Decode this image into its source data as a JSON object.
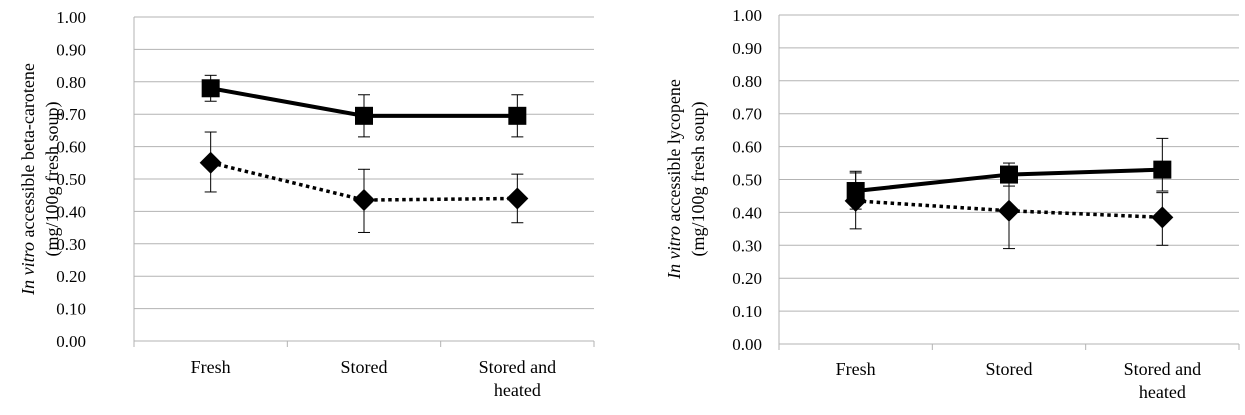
{
  "chart_data": [
    {
      "type": "line",
      "categories": [
        "Fresh",
        "Stored",
        [
          "Stored and",
          "heated"
        ]
      ],
      "ylabel": {
        "italic": "In vitro",
        "rest": " accessible beta-carotene",
        "line2": "(mg/100g fresh soup)"
      },
      "ylim": [
        0,
        1.0
      ],
      "yticks": [
        "0.00",
        "0.10",
        "0.20",
        "0.30",
        "0.40",
        "0.50",
        "0.60",
        "0.70",
        "0.80",
        "0.90",
        "1.00"
      ],
      "grid": true,
      "series": [
        {
          "marker": "square",
          "style": "solid",
          "values": [
            0.78,
            0.695,
            0.695
          ],
          "errors": [
            [
              0.74,
              0.82
            ],
            [
              0.63,
              0.76
            ],
            [
              0.63,
              0.76
            ]
          ]
        },
        {
          "marker": "diamond",
          "style": "dotted",
          "values": [
            0.55,
            0.435,
            0.44
          ],
          "errors": [
            [
              0.46,
              0.645
            ],
            [
              0.335,
              0.53
            ],
            [
              0.365,
              0.515
            ]
          ]
        }
      ]
    },
    {
      "type": "line",
      "categories": [
        "Fresh",
        "Stored",
        [
          "Stored and",
          "heated"
        ]
      ],
      "ylabel": {
        "italic": "In vitro",
        "rest": " accessible lycopene",
        "line2": "(mg/100g fresh soup)"
      },
      "ylim": [
        0,
        1.0
      ],
      "yticks": [
        "0.00",
        "0.10",
        "0.20",
        "0.30",
        "0.40",
        "0.50",
        "0.60",
        "0.70",
        "0.80",
        "0.90",
        "1.00"
      ],
      "grid": true,
      "series": [
        {
          "marker": "square",
          "style": "solid",
          "values": [
            0.465,
            0.515,
            0.53
          ],
          "errors": [
            [
              0.41,
              0.52
            ],
            [
              0.48,
              0.55
            ],
            [
              0.465,
              0.625
            ]
          ]
        },
        {
          "marker": "diamond",
          "style": "dotted",
          "values": [
            0.435,
            0.405,
            0.385
          ],
          "errors": [
            [
              0.35,
              0.525
            ],
            [
              0.29,
              0.53
            ],
            [
              0.3,
              0.46
            ]
          ]
        }
      ]
    }
  ]
}
